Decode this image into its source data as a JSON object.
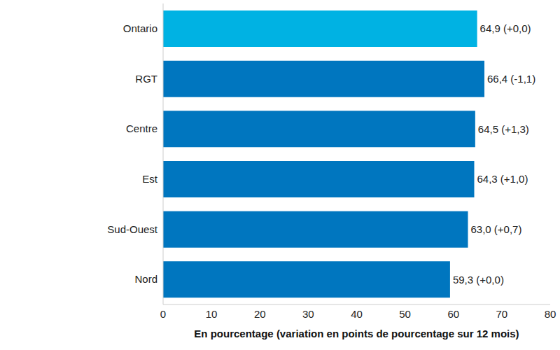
{
  "chart_data": {
    "type": "bar",
    "orientation": "horizontal",
    "categories": [
      "Ontario",
      "RGT",
      "Centre",
      "Est",
      "Sud-Ouest",
      "Nord"
    ],
    "values": [
      64.9,
      66.4,
      64.5,
      64.3,
      63.0,
      59.3
    ],
    "value_labels": [
      "64,9 (+0,0)",
      "66,4 (-1,1)",
      "64,5 (+1,3)",
      "64,3 (+1,0)",
      "63,0 (+0,7)",
      "59,3 (+0,0)"
    ],
    "data_labels": true,
    "colors": [
      "#00b2e3",
      "#0076bf",
      "#0076bf",
      "#0076bf",
      "#0076bf",
      "#0076bf"
    ],
    "xlabel": "En pourcentage (variation en points de pourcentage sur 12 mois)",
    "xlim": [
      0,
      80
    ],
    "xticks": [
      0,
      10,
      20,
      30,
      40,
      50,
      60,
      70,
      80
    ],
    "grid": false
  }
}
